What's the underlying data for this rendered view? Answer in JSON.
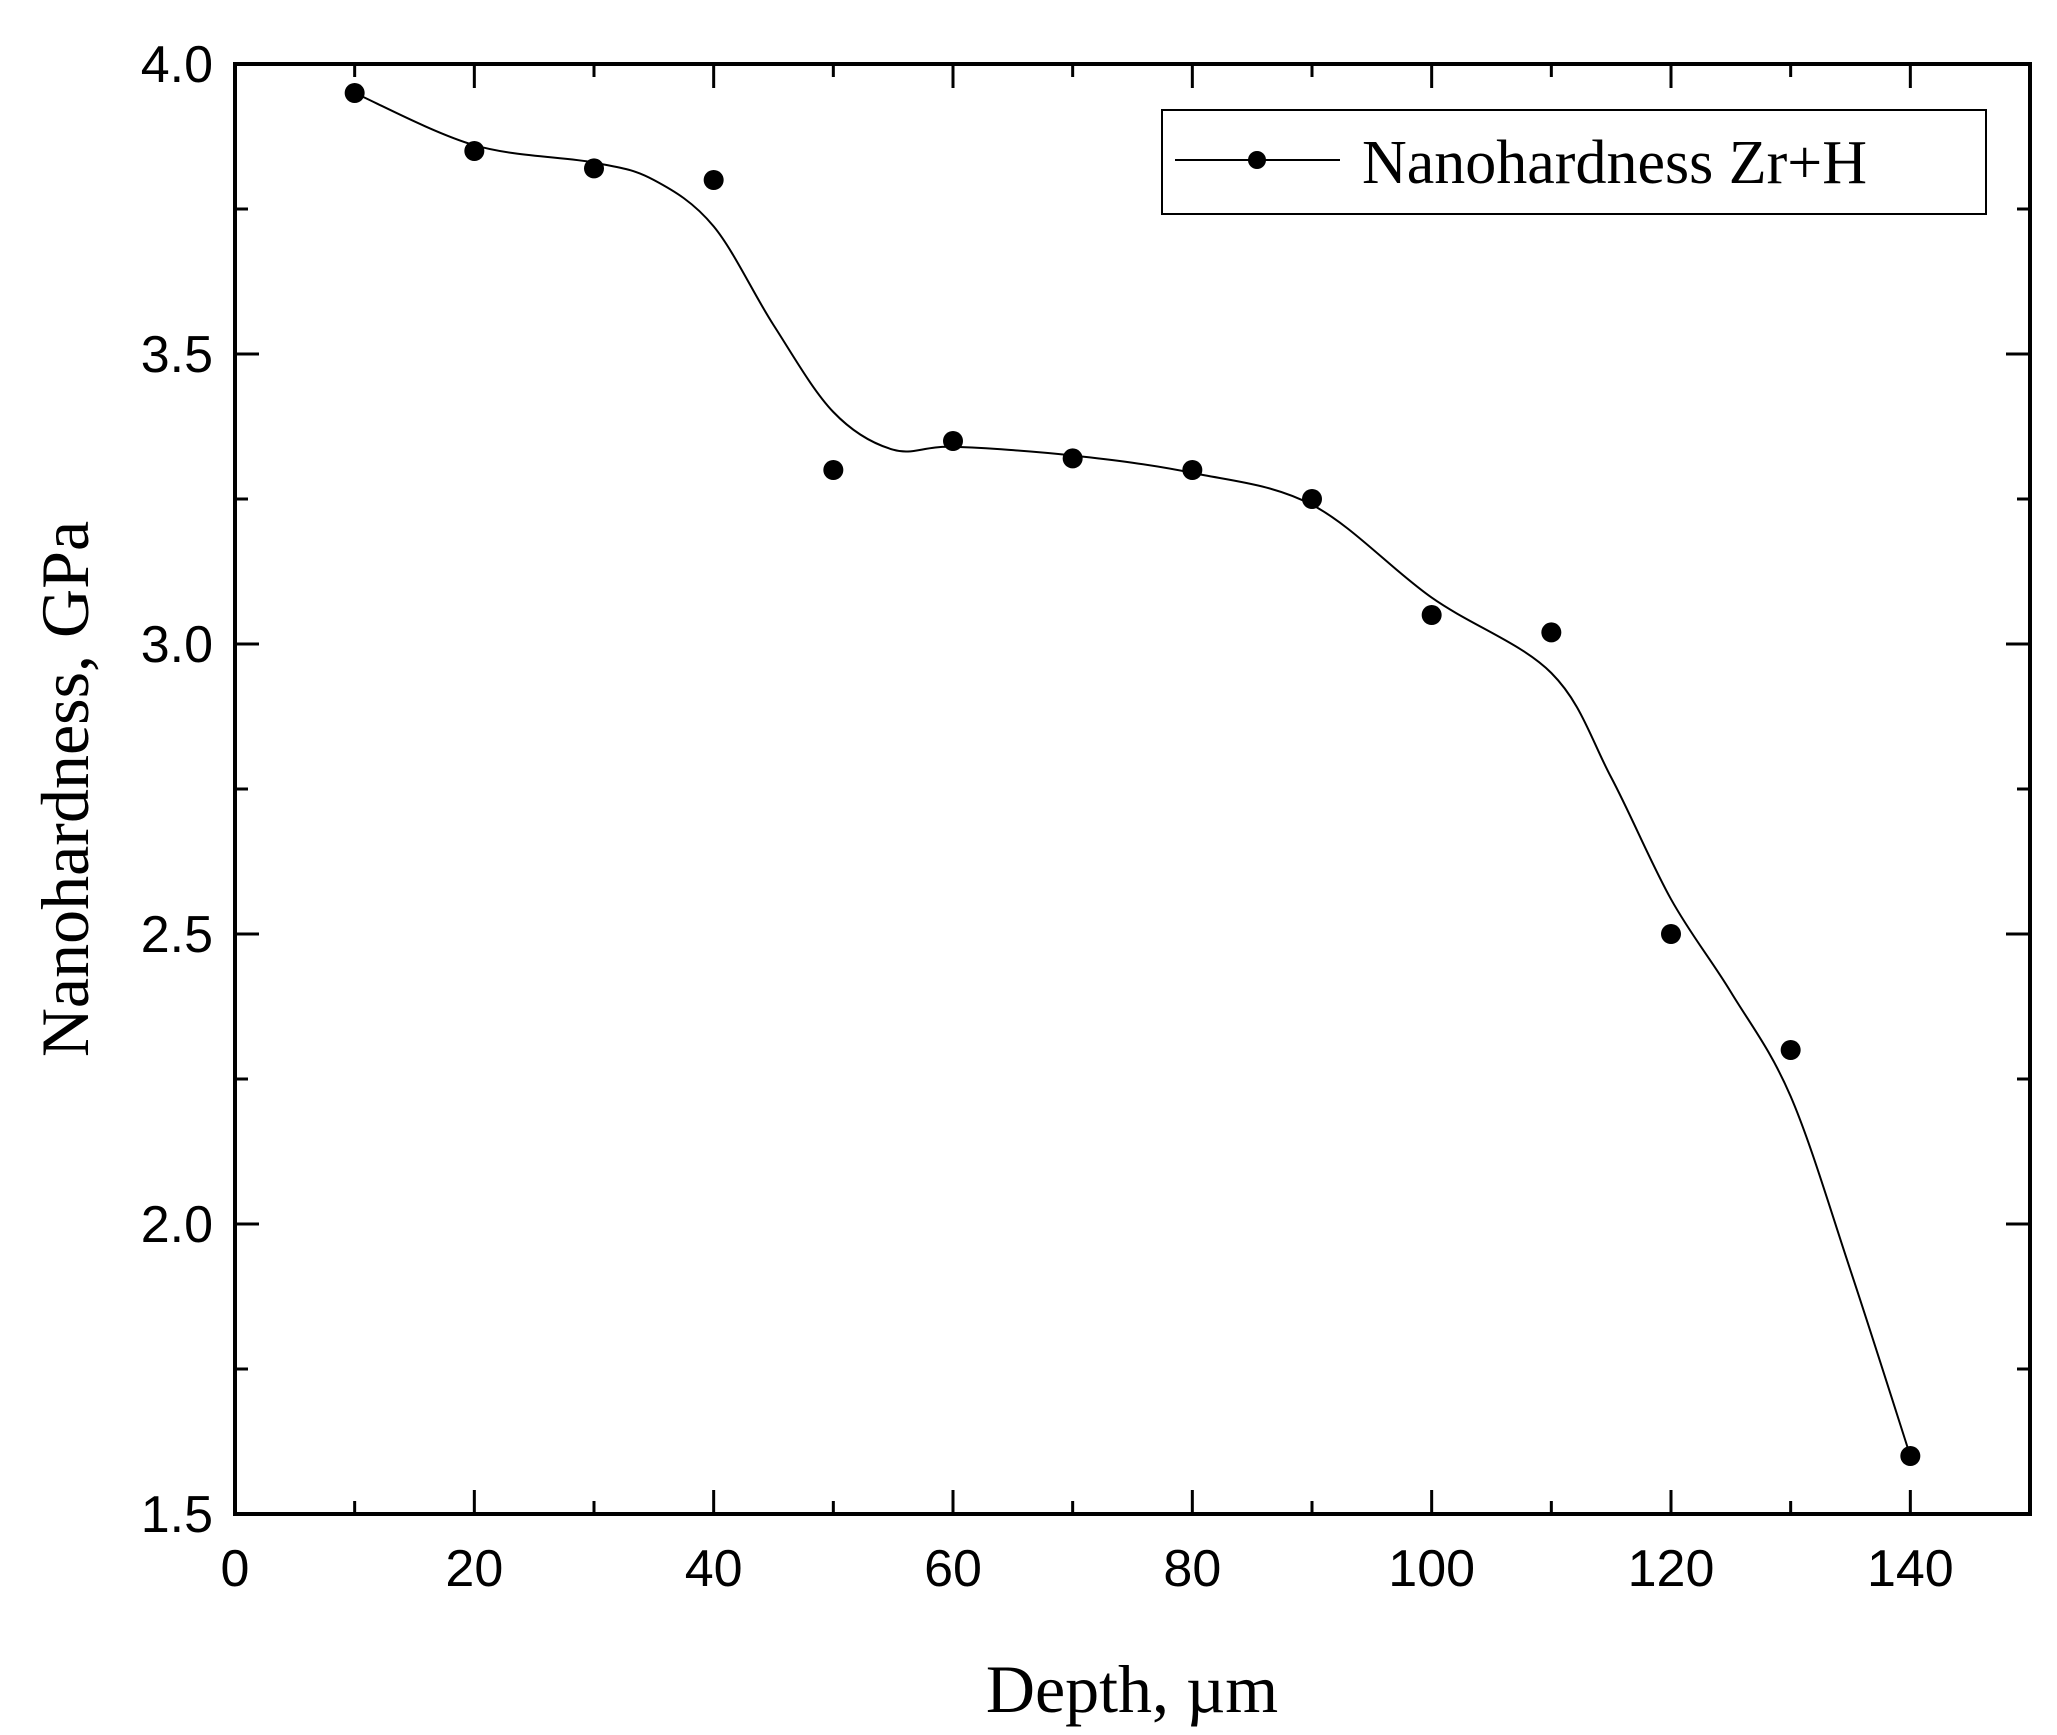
{
  "chart_data": {
    "type": "line",
    "title": "",
    "xlabel": "Depth, µm",
    "ylabel": "Nanohardness, GPa",
    "xlim": [
      0,
      150
    ],
    "ylim": [
      1.5,
      4.0
    ],
    "x_ticks": [
      "0",
      "20",
      "40",
      "60",
      "80",
      "100",
      "120",
      "140"
    ],
    "y_ticks": [
      "1.5",
      "2.0",
      "2.5",
      "3.0",
      "3.5",
      "4.0"
    ],
    "grid": false,
    "legend_position": "top-right",
    "series": [
      {
        "name": "Nanohardness Zr+H",
        "x": [
          10,
          20,
          30,
          40,
          50,
          60,
          70,
          80,
          90,
          100,
          110,
          120,
          130,
          140
        ],
        "y": [
          3.95,
          3.85,
          3.82,
          3.8,
          3.3,
          3.35,
          3.32,
          3.3,
          3.25,
          3.05,
          3.02,
          2.5,
          2.3,
          1.6
        ],
        "curve_x": [
          10,
          20,
          30,
          35,
          40,
          45,
          50,
          55,
          60,
          70,
          80,
          90,
          100,
          110,
          115,
          120,
          125,
          130,
          135,
          140
        ],
        "curve_y": [
          3.95,
          3.86,
          3.83,
          3.8,
          3.72,
          3.55,
          3.4,
          3.335,
          3.34,
          3.325,
          3.295,
          3.24,
          3.08,
          2.95,
          2.77,
          2.56,
          2.4,
          2.22,
          1.92,
          1.6
        ],
        "color": "#000000"
      }
    ]
  }
}
